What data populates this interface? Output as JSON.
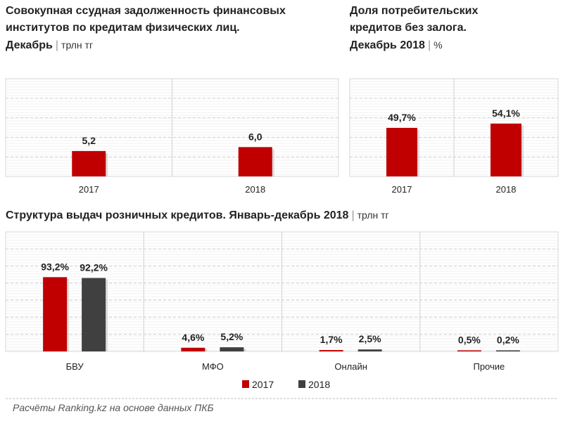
{
  "chart_data": [
    {
      "type": "bar",
      "title_lines": [
        "Совокупная ссудная задолженность финансовых",
        "институтов по кредитам физических лиц."
      ],
      "subtitle": "Декабрь",
      "unit": "трлн тг",
      "categories": [
        "2017",
        "2018"
      ],
      "values": [
        5.2,
        6.0
      ],
      "labels": [
        "5,2",
        "6,0"
      ],
      "ylim": [
        0,
        20
      ],
      "grid": true,
      "color": "#c00000"
    },
    {
      "type": "bar",
      "title_lines": [
        "Доля потребительских",
        "кредитов без залога."
      ],
      "subtitle": "Декабрь 2018",
      "unit": "%",
      "categories": [
        "2017",
        "2018"
      ],
      "values": [
        49.7,
        54.1
      ],
      "labels": [
        "49,7%",
        "54,1%"
      ],
      "ylim": [
        0,
        100
      ],
      "grid": true,
      "color": "#c00000"
    },
    {
      "type": "bar",
      "title": "Структура выдач розничных кредитов. Январь-декабрь 2018",
      "unit": "трлн тг",
      "categories": [
        "БВУ",
        "МФО",
        "Онлайн",
        "Прочие"
      ],
      "series": [
        {
          "name": "2017",
          "values": [
            93.2,
            4.6,
            1.7,
            0.5
          ],
          "labels": [
            "93,2%",
            "4,6%",
            "1,7%",
            "0,5%"
          ],
          "color": "#c00000"
        },
        {
          "name": "2018",
          "values": [
            92.2,
            5.2,
            2.5,
            0.2
          ],
          "labels": [
            "92,2%",
            "5,2%",
            "2,5%",
            "0,2%"
          ],
          "color": "#404040"
        }
      ],
      "ylim": [
        0,
        150
      ],
      "grid": true,
      "legend": "bottom"
    }
  ],
  "source": "Расчёты Ranking.kz на основе данных ПКБ"
}
